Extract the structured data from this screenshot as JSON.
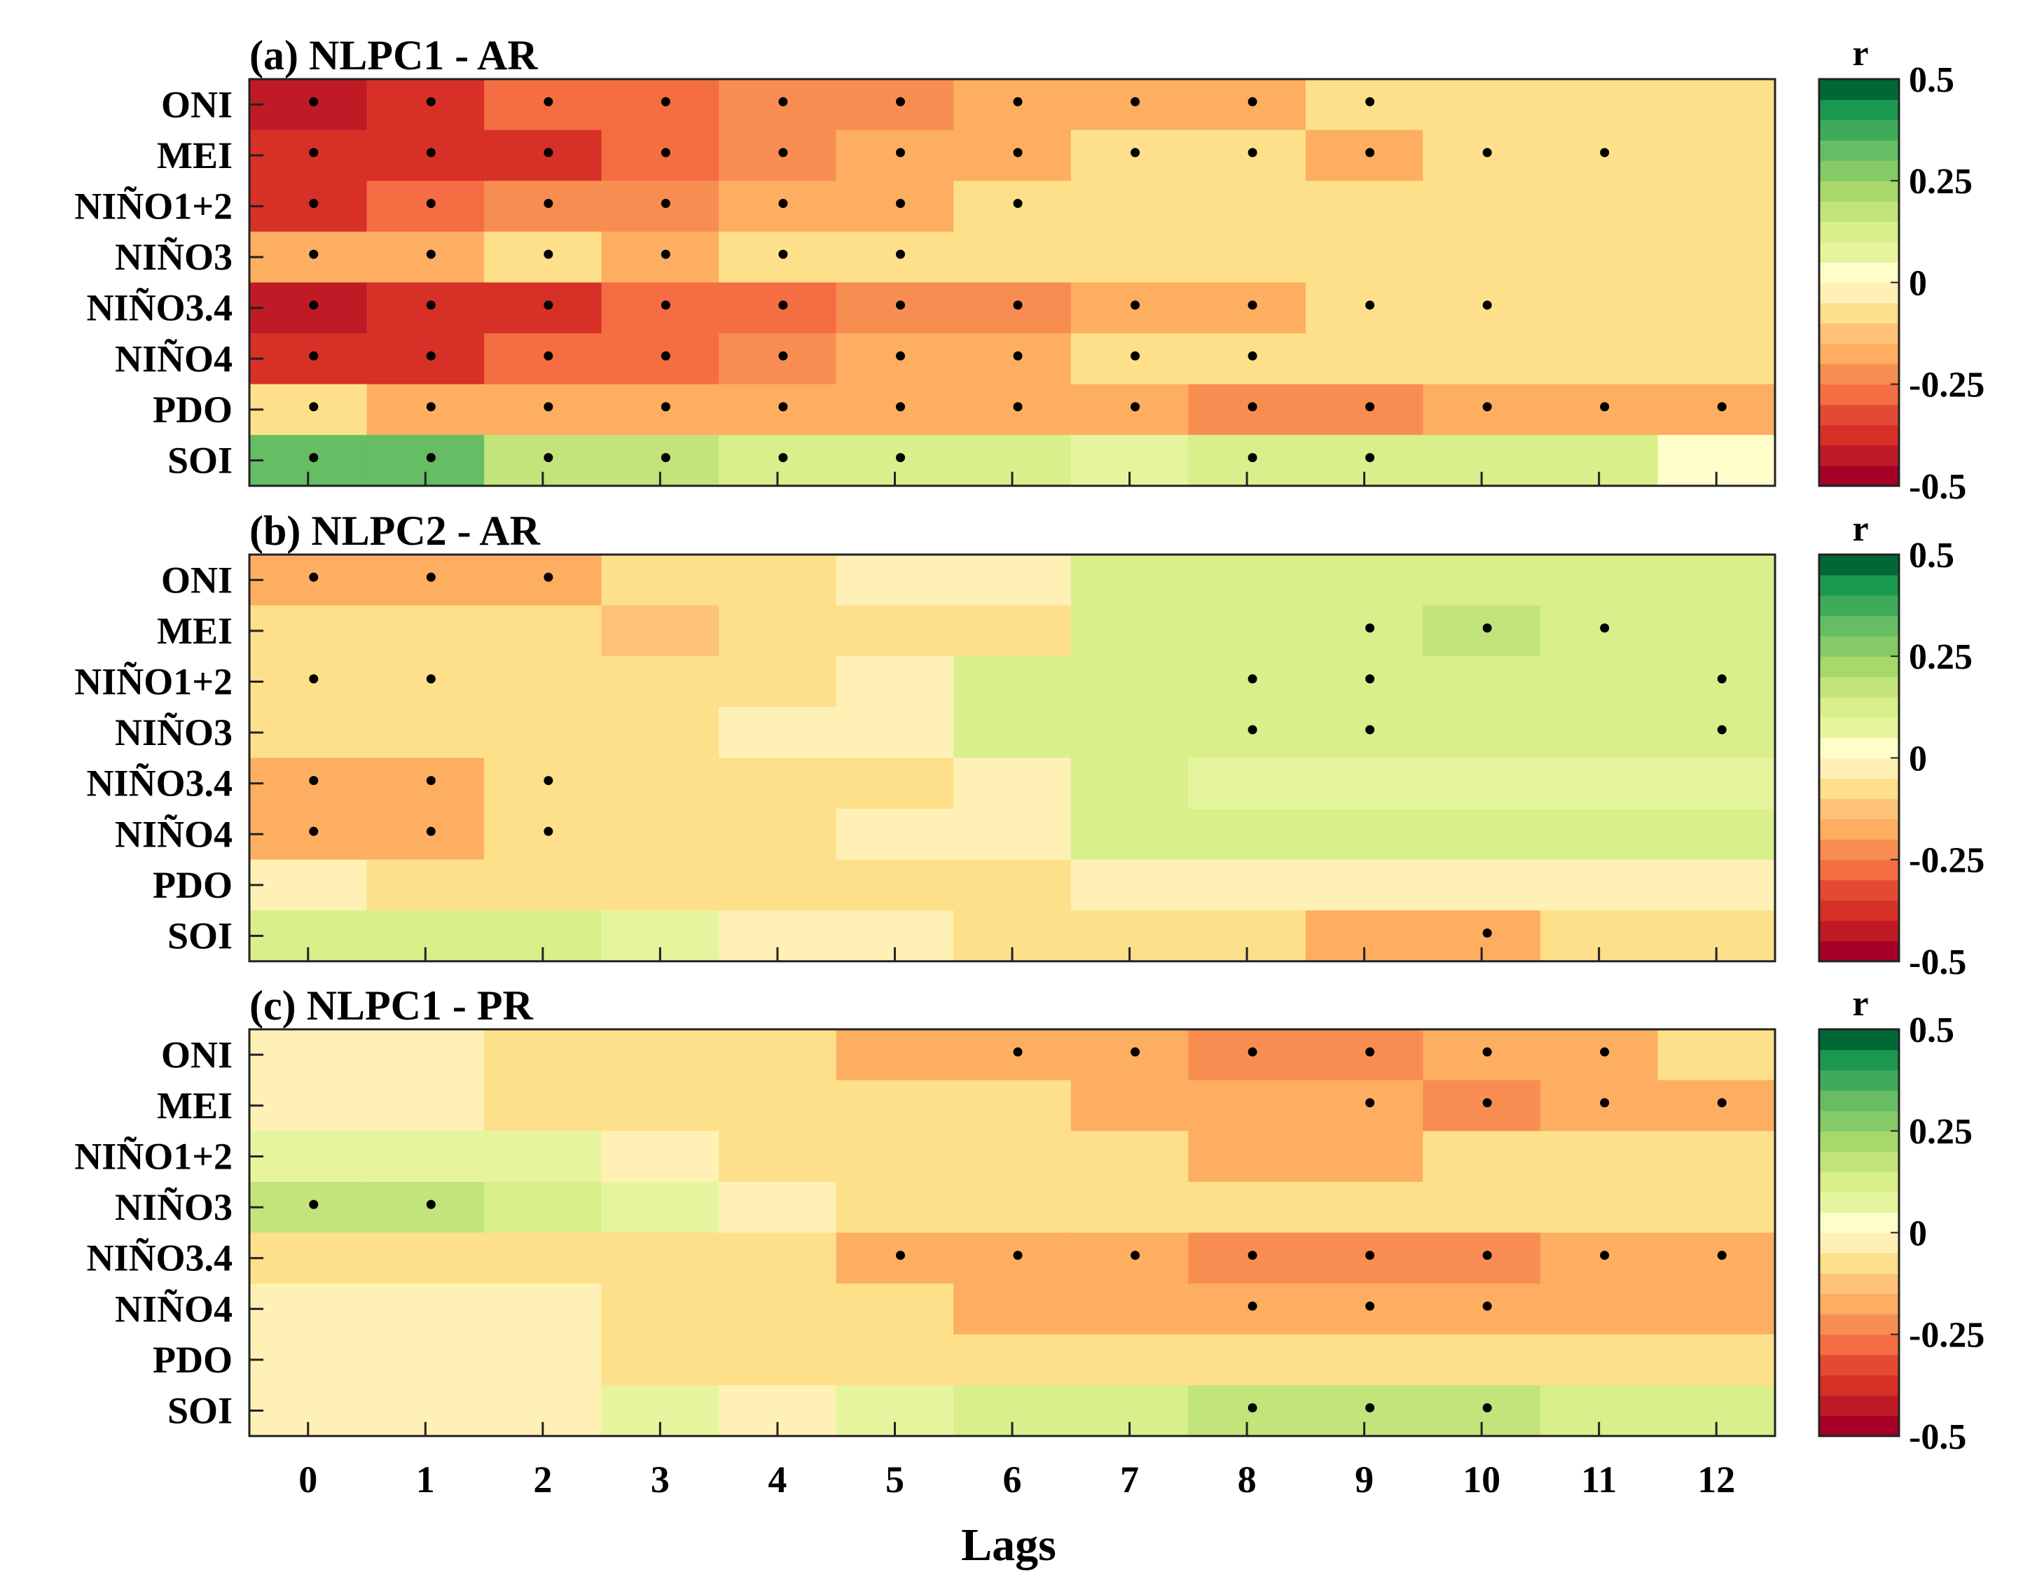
{
  "chart_data": {
    "type": "heatmap",
    "xlabel": "Lags",
    "x_ticks": [
      "0",
      "1",
      "2",
      "3",
      "4",
      "5",
      "6",
      "7",
      "8",
      "9",
      "10",
      "11",
      "12"
    ],
    "y_categories": [
      "ONI",
      "MEI",
      "NIÑO1+2",
      "NIÑO3",
      "NIÑO3.4",
      "NIÑO4",
      "PDO",
      "SOI"
    ],
    "colorbar": {
      "label": "r",
      "range": [
        -0.5,
        0.5
      ],
      "ticks": [
        0.5,
        0.25,
        0,
        -0.25,
        -0.5
      ],
      "tick_labels": [
        "0.5",
        "0.25",
        "0",
        "-0.25",
        "-0.5"
      ],
      "levels": 20,
      "colors_low_to_high": [
        "#a50026",
        "#c01a27",
        "#d73027",
        "#e34a33",
        "#f46d43",
        "#f88d52",
        "#fdae61",
        "#fec279",
        "#fee08b",
        "#fff1b5",
        "#fffecb",
        "#e6f59d",
        "#d9ef8b",
        "#c2e47b",
        "#a6d96a",
        "#84ca66",
        "#66bd63",
        "#3faa59",
        "#1a9850",
        "#006837"
      ]
    },
    "panels": [
      {
        "title": "(a) NLPC1 - AR",
        "values": [
          [
            -0.42,
            -0.38,
            -0.3,
            -0.3,
            -0.24,
            -0.24,
            -0.18,
            -0.18,
            -0.18,
            -0.1,
            -0.1,
            -0.06,
            -0.06
          ],
          [
            -0.38,
            -0.38,
            -0.38,
            -0.3,
            -0.24,
            -0.18,
            -0.18,
            -0.1,
            -0.1,
            -0.18,
            -0.1,
            -0.1,
            -0.1
          ],
          [
            -0.38,
            -0.3,
            -0.24,
            -0.24,
            -0.18,
            -0.18,
            -0.1,
            -0.1,
            -0.1,
            -0.1,
            -0.06,
            -0.06,
            -0.06
          ],
          [
            -0.18,
            -0.18,
            -0.1,
            -0.18,
            -0.1,
            -0.1,
            -0.1,
            -0.06,
            -0.06,
            -0.06,
            -0.06,
            -0.06,
            -0.06
          ],
          [
            -0.42,
            -0.38,
            -0.38,
            -0.3,
            -0.3,
            -0.24,
            -0.24,
            -0.18,
            -0.18,
            -0.1,
            -0.1,
            -0.1,
            -0.1
          ],
          [
            -0.38,
            -0.38,
            -0.3,
            -0.3,
            -0.24,
            -0.18,
            -0.18,
            -0.1,
            -0.1,
            -0.1,
            -0.1,
            -0.06,
            -0.06
          ],
          [
            -0.1,
            -0.18,
            -0.18,
            -0.18,
            -0.18,
            -0.18,
            -0.18,
            -0.18,
            -0.24,
            -0.24,
            -0.18,
            -0.18,
            -0.18
          ],
          [
            0.32,
            0.32,
            0.18,
            0.18,
            0.1,
            0.1,
            0.1,
            0.06,
            0.1,
            0.1,
            0.1,
            0.1,
            0.0
          ]
        ],
        "significant": [
          [
            0,
            1,
            2,
            3,
            4,
            5,
            6,
            7,
            8,
            9
          ],
          [
            0,
            1,
            2,
            3,
            4,
            5,
            6,
            7,
            8,
            9,
            10,
            11
          ],
          [
            0,
            1,
            2,
            3,
            4,
            5,
            6
          ],
          [
            0,
            1,
            2,
            3,
            4,
            5
          ],
          [
            0,
            1,
            2,
            3,
            4,
            5,
            6,
            7,
            8,
            9,
            10
          ],
          [
            0,
            1,
            2,
            3,
            4,
            5,
            6,
            7,
            8
          ],
          [
            0,
            1,
            2,
            3,
            4,
            5,
            6,
            7,
            8,
            9,
            10,
            11,
            12
          ],
          [
            0,
            1,
            2,
            3,
            4,
            5,
            8,
            9
          ]
        ]
      },
      {
        "title": "(b) NLPC2 - AR",
        "values": [
          [
            -0.18,
            -0.18,
            -0.18,
            -0.1,
            -0.06,
            -0.02,
            -0.02,
            0.1,
            0.12,
            0.12,
            0.12,
            0.12,
            0.12
          ],
          [
            -0.1,
            -0.1,
            -0.1,
            -0.12,
            -0.1,
            -0.1,
            -0.06,
            0.1,
            0.12,
            0.12,
            0.18,
            0.12,
            0.12
          ],
          [
            -0.1,
            -0.1,
            -0.1,
            -0.1,
            -0.06,
            -0.02,
            0.1,
            0.1,
            0.12,
            0.12,
            0.12,
            0.12,
            0.12
          ],
          [
            -0.1,
            -0.1,
            -0.06,
            -0.06,
            -0.02,
            -0.02,
            0.1,
            0.1,
            0.12,
            0.12,
            0.12,
            0.12,
            0.12
          ],
          [
            -0.18,
            -0.18,
            -0.1,
            -0.1,
            -0.1,
            -0.06,
            -0.02,
            0.1,
            0.06,
            0.06,
            0.06,
            0.06,
            0.06
          ],
          [
            -0.18,
            -0.18,
            -0.1,
            -0.1,
            -0.06,
            -0.02,
            -0.02,
            0.1,
            0.12,
            0.12,
            0.12,
            0.12,
            0.12
          ],
          [
            -0.04,
            -0.1,
            -0.1,
            -0.1,
            -0.1,
            -0.1,
            -0.06,
            -0.02,
            -0.02,
            -0.02,
            -0.02,
            -0.02,
            -0.02
          ],
          [
            0.12,
            0.12,
            0.12,
            0.08,
            -0.02,
            -0.02,
            -0.1,
            -0.1,
            -0.1,
            -0.18,
            -0.18,
            -0.06,
            -0.06
          ]
        ],
        "significant": [
          [
            0,
            1,
            2
          ],
          [
            9,
            10,
            11
          ],
          [
            0,
            1,
            8,
            9,
            12
          ],
          [
            8,
            9,
            12
          ],
          [
            0,
            1,
            2
          ],
          [
            0,
            1,
            2
          ],
          [],
          [
            10
          ]
        ]
      },
      {
        "title": "(c) NLPC1 - PR",
        "values": [
          [
            -0.02,
            -0.02,
            -0.06,
            -0.1,
            -0.1,
            -0.18,
            -0.18,
            -0.18,
            -0.24,
            -0.24,
            -0.18,
            -0.18,
            -0.1
          ],
          [
            -0.02,
            -0.02,
            -0.06,
            -0.06,
            -0.1,
            -0.1,
            -0.1,
            -0.18,
            -0.18,
            -0.18,
            -0.24,
            -0.18,
            -0.18
          ],
          [
            0.06,
            0.06,
            0.06,
            -0.02,
            -0.06,
            -0.1,
            -0.1,
            -0.1,
            -0.18,
            -0.18,
            -0.1,
            -0.1,
            -0.1
          ],
          [
            0.18,
            0.18,
            0.12,
            0.08,
            -0.02,
            -0.06,
            -0.06,
            -0.06,
            -0.06,
            -0.06,
            -0.06,
            -0.06,
            -0.1
          ],
          [
            -0.06,
            -0.06,
            -0.1,
            -0.1,
            -0.1,
            -0.18,
            -0.18,
            -0.18,
            -0.24,
            -0.24,
            -0.24,
            -0.18,
            -0.18
          ],
          [
            -0.02,
            -0.02,
            -0.02,
            -0.06,
            -0.1,
            -0.1,
            -0.18,
            -0.18,
            -0.18,
            -0.18,
            -0.18,
            -0.18,
            -0.18
          ],
          [
            -0.02,
            -0.02,
            -0.02,
            -0.06,
            -0.06,
            -0.1,
            -0.1,
            -0.1,
            -0.1,
            -0.1,
            -0.1,
            -0.1,
            -0.1
          ],
          [
            -0.02,
            -0.02,
            -0.02,
            0.08,
            -0.02,
            0.08,
            0.12,
            0.12,
            0.18,
            0.18,
            0.18,
            0.12,
            0.12
          ]
        ],
        "significant": [
          [
            6,
            7,
            8,
            9,
            10,
            11
          ],
          [
            9,
            10,
            11,
            12
          ],
          [],
          [
            0,
            1
          ],
          [
            5,
            6,
            7,
            8,
            9,
            10,
            11,
            12
          ],
          [
            8,
            9,
            10
          ],
          [],
          [
            8,
            9,
            10
          ]
        ]
      }
    ]
  }
}
